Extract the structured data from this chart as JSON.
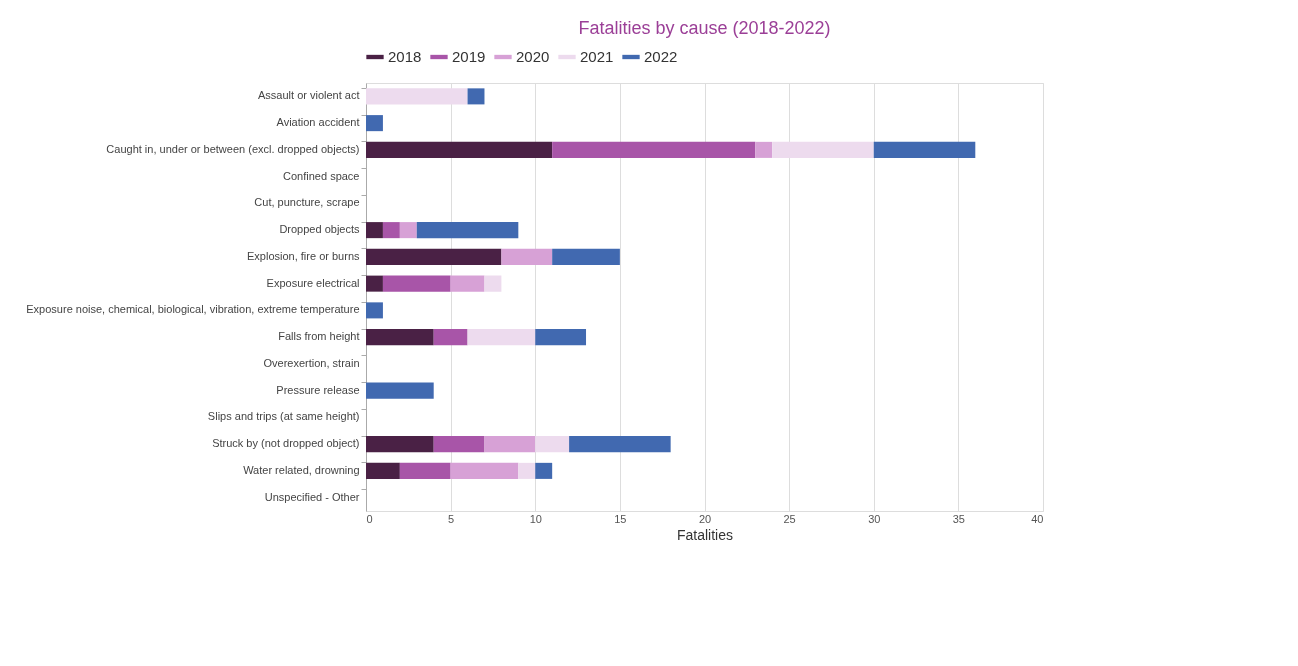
{
  "chart_data": {
    "type": "bar",
    "orientation": "horizontal",
    "stacked": true,
    "title": "Fatalities by cause (2018-2022)",
    "xlabel": "Fatalities",
    "categories": [
      "Assault or violent act",
      "Aviation accident",
      "Caught in, under or between (excl. dropped objects)",
      "Confined space",
      "Cut, puncture, scrape",
      "Dropped objects",
      "Explosion, fire or burns",
      "Exposure electrical",
      "Exposure noise, chemical, biological, vibration, extreme temperature",
      "Falls from height",
      "Overexertion, strain",
      "Pressure release",
      "Slips and trips (at same height)",
      "Struck by (not dropped object)",
      "Water related, drowning",
      "Unspecified - Other"
    ],
    "series": [
      {
        "name": "2018",
        "color": "#4a2145",
        "values": [
          0,
          0,
          11,
          0,
          0,
          1,
          8,
          1,
          0,
          4,
          0,
          0,
          0,
          4,
          2,
          0
        ]
      },
      {
        "name": "2019",
        "color": "#a855a8",
        "values": [
          0,
          0,
          12,
          0,
          0,
          1,
          0,
          4,
          0,
          2,
          0,
          0,
          0,
          3,
          3,
          0
        ]
      },
      {
        "name": "2020",
        "color": "#d7a1d6",
        "values": [
          0,
          0,
          1,
          0,
          0,
          1,
          3,
          2,
          0,
          0,
          0,
          0,
          0,
          3,
          4,
          0
        ]
      },
      {
        "name": "2021",
        "color": "#eddbee",
        "values": [
          6,
          0,
          6,
          0,
          0,
          0,
          0,
          1,
          0,
          4,
          0,
          0,
          0,
          2,
          1,
          0
        ]
      },
      {
        "name": "2022",
        "color": "#4169b0",
        "values": [
          1,
          1,
          6,
          0,
          0,
          6,
          4,
          0,
          1,
          3,
          0,
          4,
          0,
          6,
          1,
          0
        ]
      }
    ],
    "xlim": [
      0,
      40
    ],
    "xticks": [
      0,
      5,
      10,
      15,
      20,
      25,
      30,
      35,
      40
    ],
    "grid": "x",
    "legend": "top"
  }
}
